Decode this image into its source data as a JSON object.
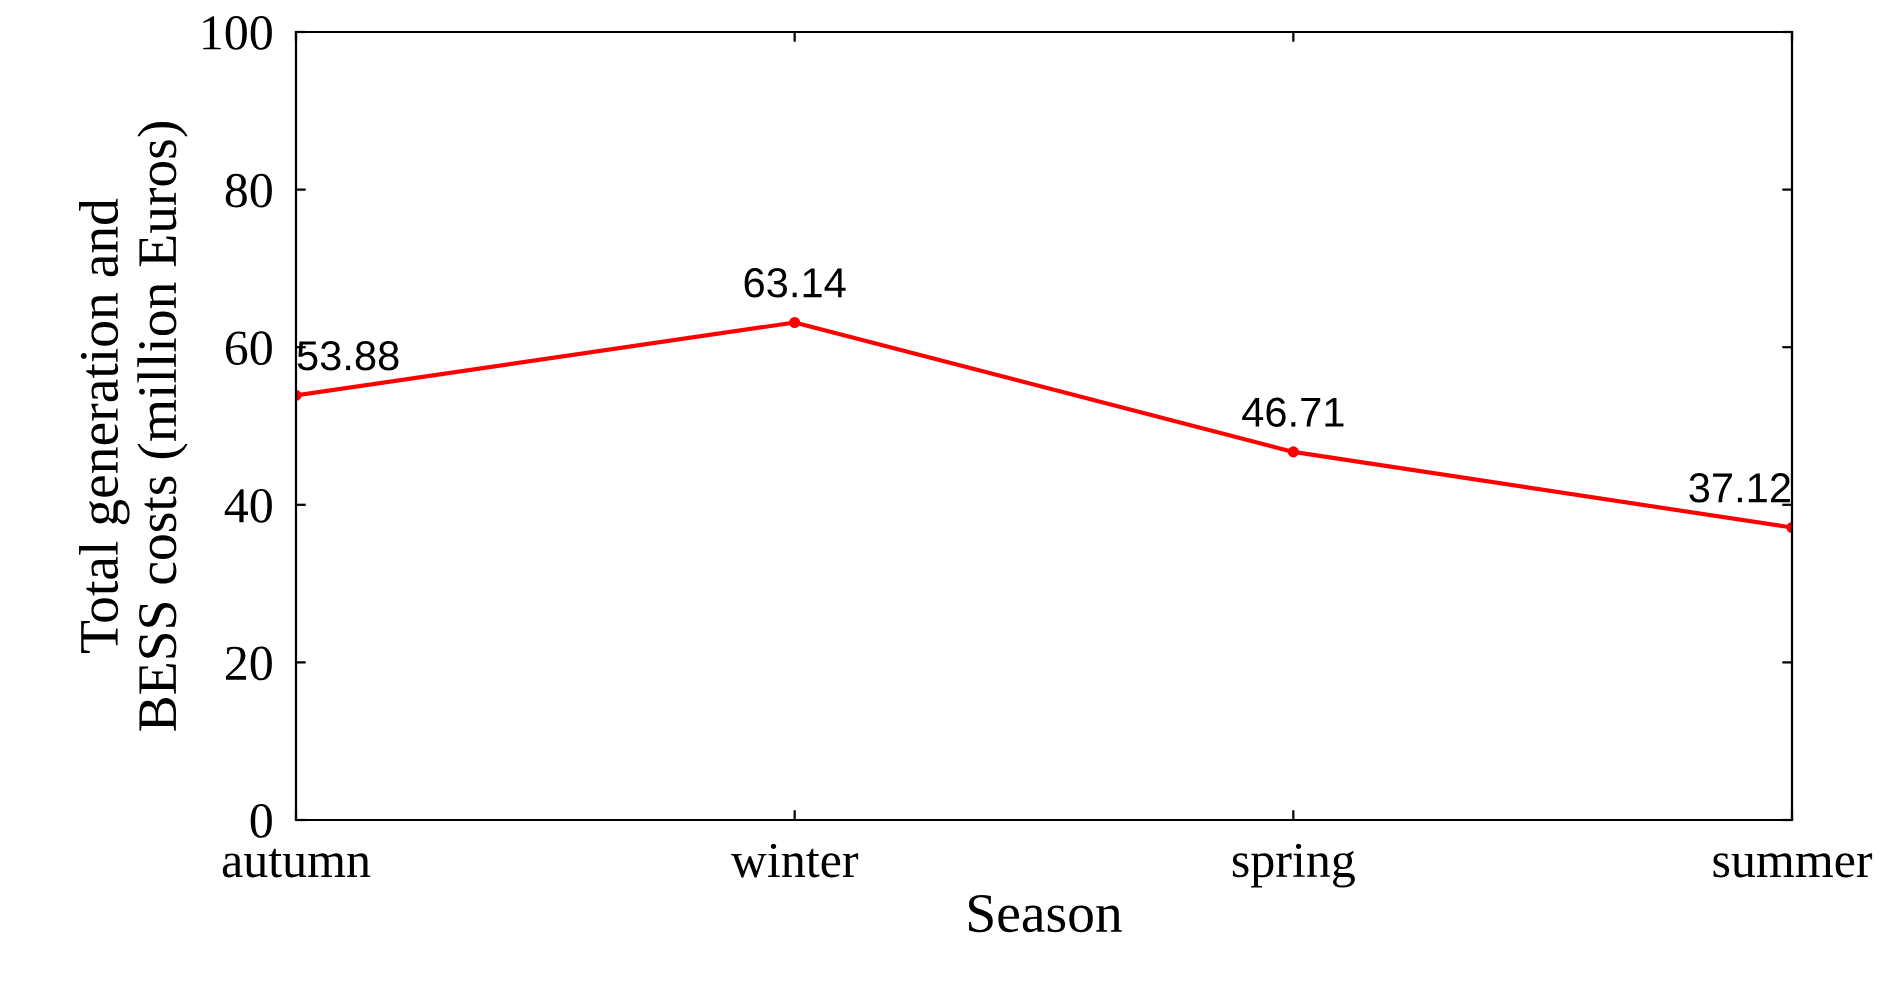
{
  "chart_data": {
    "type": "line",
    "xlabel": "Season",
    "ylabel": "Total generation and\nBESS costs (million Euros)",
    "categories": [
      "autumn",
      "winter",
      "spring",
      "summer"
    ],
    "series": [
      {
        "color": "#ff0000",
        "values": [
          53.88,
          63.14,
          46.71,
          37.12
        ]
      }
    ],
    "data_labels": true,
    "marker": "circle",
    "line_style": "solid",
    "ylim": [
      0,
      100
    ],
    "yticks": [
      0,
      20,
      40,
      60,
      80,
      100
    ],
    "grid": false,
    "legend": false
  }
}
